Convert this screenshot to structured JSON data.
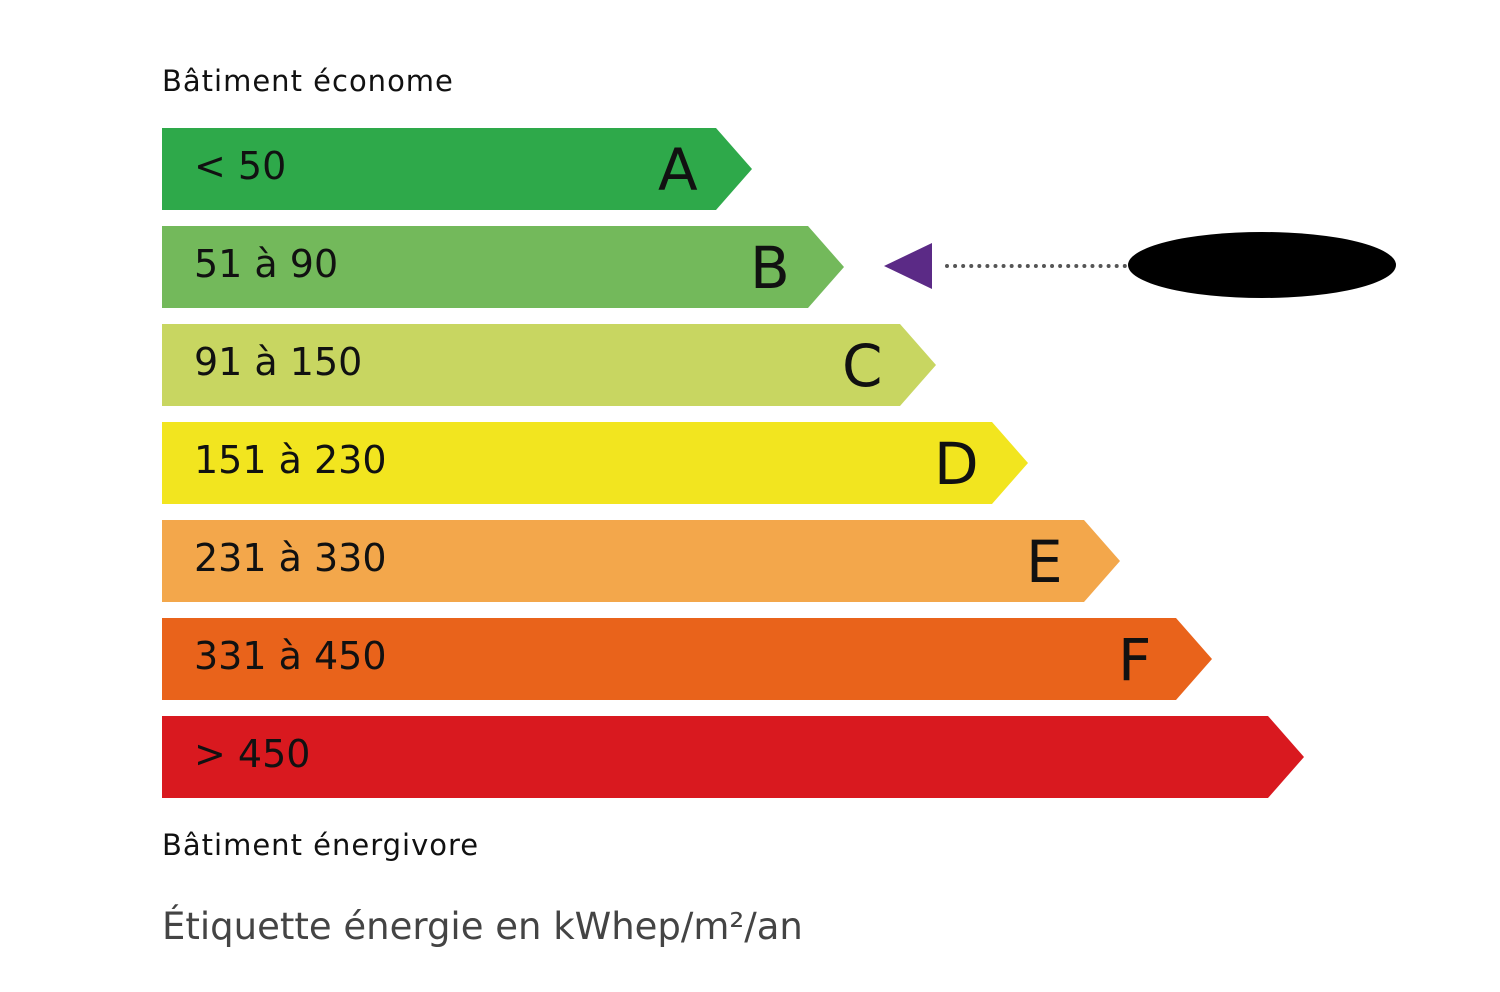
{
  "header_top": "Bâtiment économe",
  "header_bottom": "Bâtiment énergivore",
  "footer": "Étiquette énergie en kWhep/m²/an",
  "classes": [
    {
      "letter": "A",
      "range": "< 50",
      "color": "#2ea94a"
    },
    {
      "letter": "B",
      "range": "51 à 90",
      "color": "#73b95b"
    },
    {
      "letter": "C",
      "range": "91 à 150",
      "color": "#c8d661"
    },
    {
      "letter": "D",
      "range": "151 à 230",
      "color": "#f2e51f"
    },
    {
      "letter": "E",
      "range": "231 à 330",
      "color": "#f3a74b"
    },
    {
      "letter": "F",
      "range": "331 à 450",
      "color": "#e9631b"
    },
    {
      "letter": "",
      "range": "> 450",
      "color": "#d9191f"
    }
  ],
  "indicator": {
    "class": "B",
    "color": "#5b2a86",
    "value_redacted": true
  }
}
